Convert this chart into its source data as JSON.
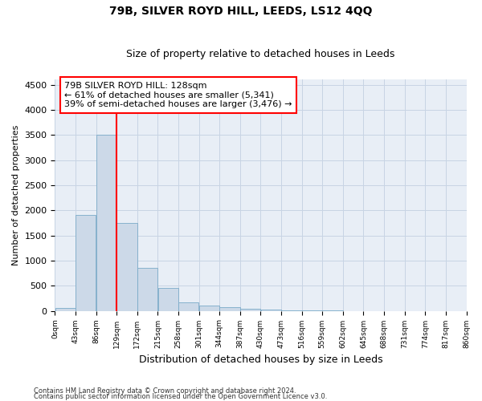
{
  "title": "79B, SILVER ROYD HILL, LEEDS, LS12 4QQ",
  "subtitle": "Size of property relative to detached houses in Leeds",
  "xlabel": "Distribution of detached houses by size in Leeds",
  "ylabel": "Number of detached properties",
  "bar_color": "#ccd9e8",
  "bar_edge_color": "#7aaac8",
  "grid_color": "#c8d4e4",
  "background_color": "#e8eef6",
  "vline_x": 129,
  "vline_color": "red",
  "annotation_line1": "79B SILVER ROYD HILL: 128sqm",
  "annotation_line2": "← 61% of detached houses are smaller (5,341)",
  "annotation_line3": "39% of semi-detached houses are larger (3,476) →",
  "annotation_box_color": "red",
  "bins": [
    0,
    43,
    86,
    129,
    172,
    215,
    258,
    301,
    344,
    387,
    430,
    473,
    516,
    559,
    602,
    645,
    688,
    731,
    774,
    817,
    860
  ],
  "bar_heights": [
    50,
    1900,
    3500,
    1750,
    850,
    450,
    175,
    100,
    75,
    40,
    20,
    5,
    3,
    2,
    1,
    1,
    0,
    0,
    0,
    0
  ],
  "ylim": [
    0,
    4600
  ],
  "yticks": [
    0,
    500,
    1000,
    1500,
    2000,
    2500,
    3000,
    3500,
    4000,
    4500
  ],
  "footer_line1": "Contains HM Land Registry data © Crown copyright and database right 2024.",
  "footer_line2": "Contains public sector information licensed under the Open Government Licence v3.0."
}
